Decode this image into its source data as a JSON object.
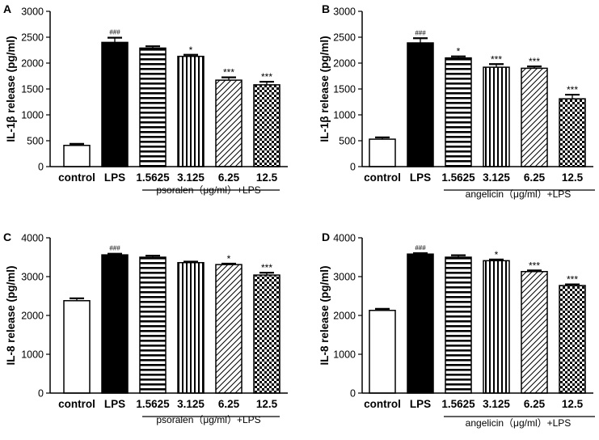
{
  "figure": {
    "panels": [
      {
        "label": "A",
        "ylabel": "IL-1β release (pg/ml)",
        "treatment": "psoralen（μg/ml）+LPS"
      },
      {
        "label": "B",
        "ylabel": "IL-1β release (pg/ml)",
        "treatment": "angelicin（μg/ml）+LPS"
      },
      {
        "label": "C",
        "ylabel": "IL-8 release (pg/ml)",
        "treatment": "psoralen（μg/ml）+LPS"
      },
      {
        "label": "D",
        "ylabel": "IL-8 release (pg/ml)",
        "treatment": "angelicin（μg/ml）+LPS"
      }
    ]
  },
  "chart_data": [
    {
      "panel": "A",
      "type": "bar",
      "categories": [
        "control",
        "LPS",
        "1.5625",
        "3.125",
        "6.25",
        "12.5"
      ],
      "values": [
        410,
        2400,
        2290,
        2130,
        1670,
        1580
      ],
      "errors": [
        30,
        90,
        35,
        30,
        55,
        60
      ],
      "significance": [
        "",
        "###",
        "",
        "*",
        "***",
        "***"
      ],
      "ylabel": "IL-1β release (pg/ml)",
      "ylim": [
        0,
        3000
      ],
      "yticks": [
        0,
        500,
        1000,
        1500,
        2000,
        2500,
        3000
      ],
      "xlabel": "psoralen（μg/ml）+LPS"
    },
    {
      "panel": "B",
      "type": "bar",
      "categories": [
        "control",
        "LPS",
        "1.5625",
        "3.125",
        "6.25",
        "12.5"
      ],
      "values": [
        530,
        2390,
        2100,
        1920,
        1900,
        1310
      ],
      "errors": [
        35,
        90,
        30,
        60,
        35,
        80
      ],
      "significance": [
        "",
        "###",
        "*",
        "***",
        "***",
        "***"
      ],
      "ylabel": "IL-1β release (pg/ml)",
      "ylim": [
        0,
        3000
      ],
      "yticks": [
        0,
        500,
        1000,
        1500,
        2000,
        2500,
        3000
      ],
      "xlabel": "angelicin（μg/ml）+LPS"
    },
    {
      "panel": "C",
      "type": "bar",
      "categories": [
        "control",
        "LPS",
        "1.5625",
        "3.125",
        "6.25",
        "12.5"
      ],
      "values": [
        2380,
        3560,
        3500,
        3360,
        3310,
        3040
      ],
      "errors": [
        60,
        30,
        40,
        25,
        25,
        60
      ],
      "significance": [
        "",
        "###",
        "",
        "",
        "*",
        "***"
      ],
      "ylabel": "IL-8 release (pg/ml)",
      "ylim": [
        0,
        4000
      ],
      "yticks": [
        0,
        1000,
        2000,
        3000,
        4000
      ],
      "xlabel": "psoralen（μg/ml）+LPS"
    },
    {
      "panel": "D",
      "type": "bar",
      "categories": [
        "control",
        "LPS",
        "1.5625",
        "3.125",
        "6.25",
        "12.5"
      ],
      "values": [
        2130,
        3580,
        3500,
        3410,
        3130,
        2770
      ],
      "errors": [
        40,
        25,
        50,
        30,
        30,
        30
      ],
      "significance": [
        "",
        "###",
        "",
        "*",
        "***",
        "***"
      ],
      "ylabel": "IL-8 release (pg/ml)",
      "ylim": [
        0,
        4000
      ],
      "yticks": [
        0,
        1000,
        2000,
        3000,
        4000
      ],
      "xlabel": "angelicin（μg/ml）+LPS"
    }
  ]
}
